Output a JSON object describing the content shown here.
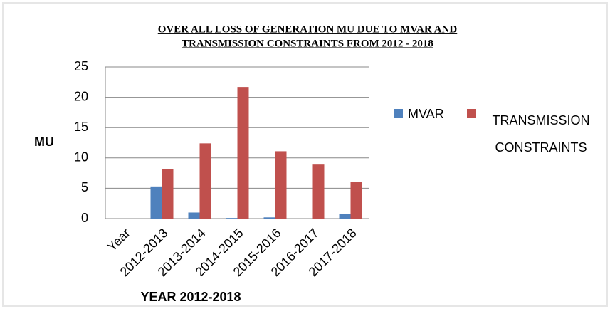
{
  "chart_data": {
    "type": "bar",
    "title": [
      "OVER ALL LOSS OF GENERATION  MU DUE   TO MVAR AND",
      "TRANSMISSION CONSTRAINTS FROM 2012 - 2018"
    ],
    "x_label": "YEAR 2012-2018",
    "y_label": "MU",
    "categories": [
      "Year",
      "2012-2013",
      "2013-2014",
      "2014-2015",
      "2015-2016",
      "2016-2017",
      "2017-2018"
    ],
    "series": [
      {
        "name": "MVAR",
        "color": "#4f81bd",
        "values": [
          null,
          5.3,
          1.0,
          0.1,
          0.2,
          0,
          0.8
        ]
      },
      {
        "name": "TRANSMISSION CONSTRAINTS",
        "color": "#c0504d",
        "values": [
          null,
          8.2,
          12.4,
          21.7,
          11.1,
          8.9,
          6.0
        ]
      }
    ],
    "ylim": [
      0,
      25
    ],
    "yticks": [
      0,
      5,
      10,
      15,
      20,
      25
    ],
    "grid": true,
    "legend": "right"
  }
}
